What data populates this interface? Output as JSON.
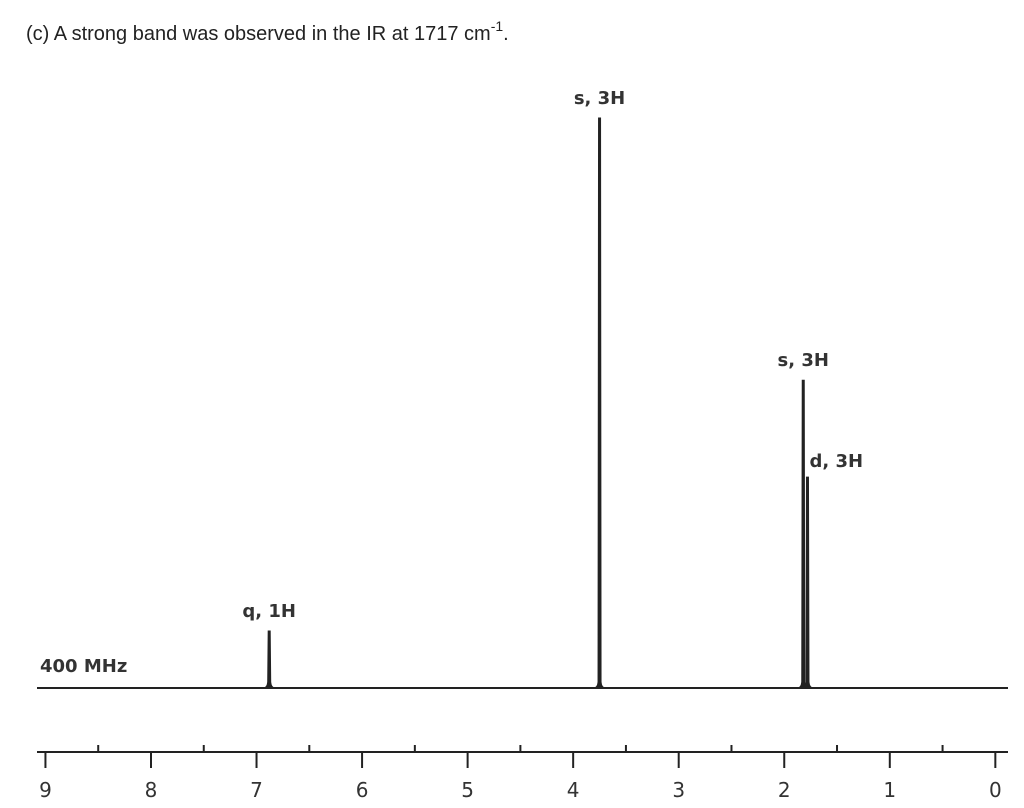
{
  "chart_data": {
    "type": "nmr",
    "title": "(c) A strong band was observed in the IR at 1717 cm",
    "title_superscript": "-1",
    "title_end": ".",
    "frequency_label": "400 MHz",
    "x": [
      6.88,
      3.75,
      1.82,
      1.78
    ],
    "values": [
      10,
      100,
      54,
      37
    ],
    "annotations": [
      "q, 1H",
      "s, 3H",
      "s, 3H",
      "d, 3H"
    ],
    "color": "#222222",
    "xlim": [
      9.08,
      -0.12
    ],
    "xticks": [
      9,
      8,
      7,
      6,
      5,
      4,
      3,
      2,
      1,
      0
    ],
    "xminorticks": [
      8.5,
      7.5,
      6.5,
      5.5,
      4.5,
      3.5,
      2.5,
      1.5,
      0.5
    ]
  }
}
